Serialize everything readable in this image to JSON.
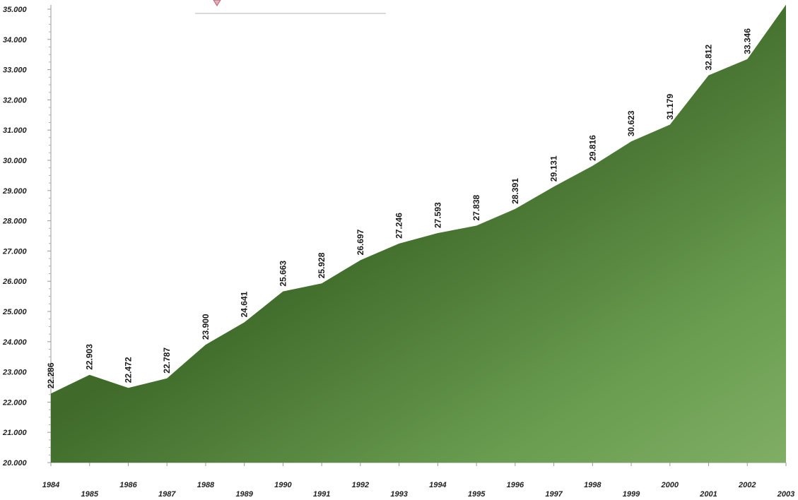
{
  "chart_data": {
    "type": "area",
    "x": [
      "1984",
      "1985",
      "1986",
      "1987",
      "1988",
      "1989",
      "1990",
      "1991",
      "1992",
      "1993",
      "1994",
      "1995",
      "1996",
      "1997",
      "1998",
      "1999",
      "2000",
      "2001",
      "2002",
      "2003"
    ],
    "values": [
      22286,
      22903,
      22472,
      22787,
      23900,
      24641,
      25663,
      25928,
      26697,
      27246,
      27593,
      27838,
      28391,
      29131,
      29816,
      30623,
      31179,
      32812,
      33346,
      35150
    ],
    "data_labels": [
      "22.286",
      "22.903",
      "22.472",
      "22.787",
      "23.900",
      "24.641",
      "25.663",
      "25.928",
      "26.697",
      "27.246",
      "27.593",
      "27.838",
      "28.391",
      "29.131",
      "29.816",
      "30.623",
      "31.179",
      "32.812",
      "33.346",
      ""
    ],
    "y_ticks": [
      20000,
      21000,
      22000,
      23000,
      24000,
      25000,
      26000,
      27000,
      28000,
      29000,
      30000,
      31000,
      32000,
      33000,
      34000,
      35000
    ],
    "y_tick_labels": [
      "20.000",
      "21.000",
      "22.000",
      "23.000",
      "24.000",
      "25.000",
      "26.000",
      "27.000",
      "28.000",
      "29.000",
      "30.000",
      "31.000",
      "32.000",
      "33.000",
      "34.000",
      "35.000"
    ],
    "ylim": [
      20000,
      35000
    ],
    "title": "",
    "xlabel": "",
    "ylabel": "",
    "grid": false,
    "legend": "none",
    "fill_color_dark": "#3f6a2a",
    "fill_color_light": "#78a95e"
  }
}
